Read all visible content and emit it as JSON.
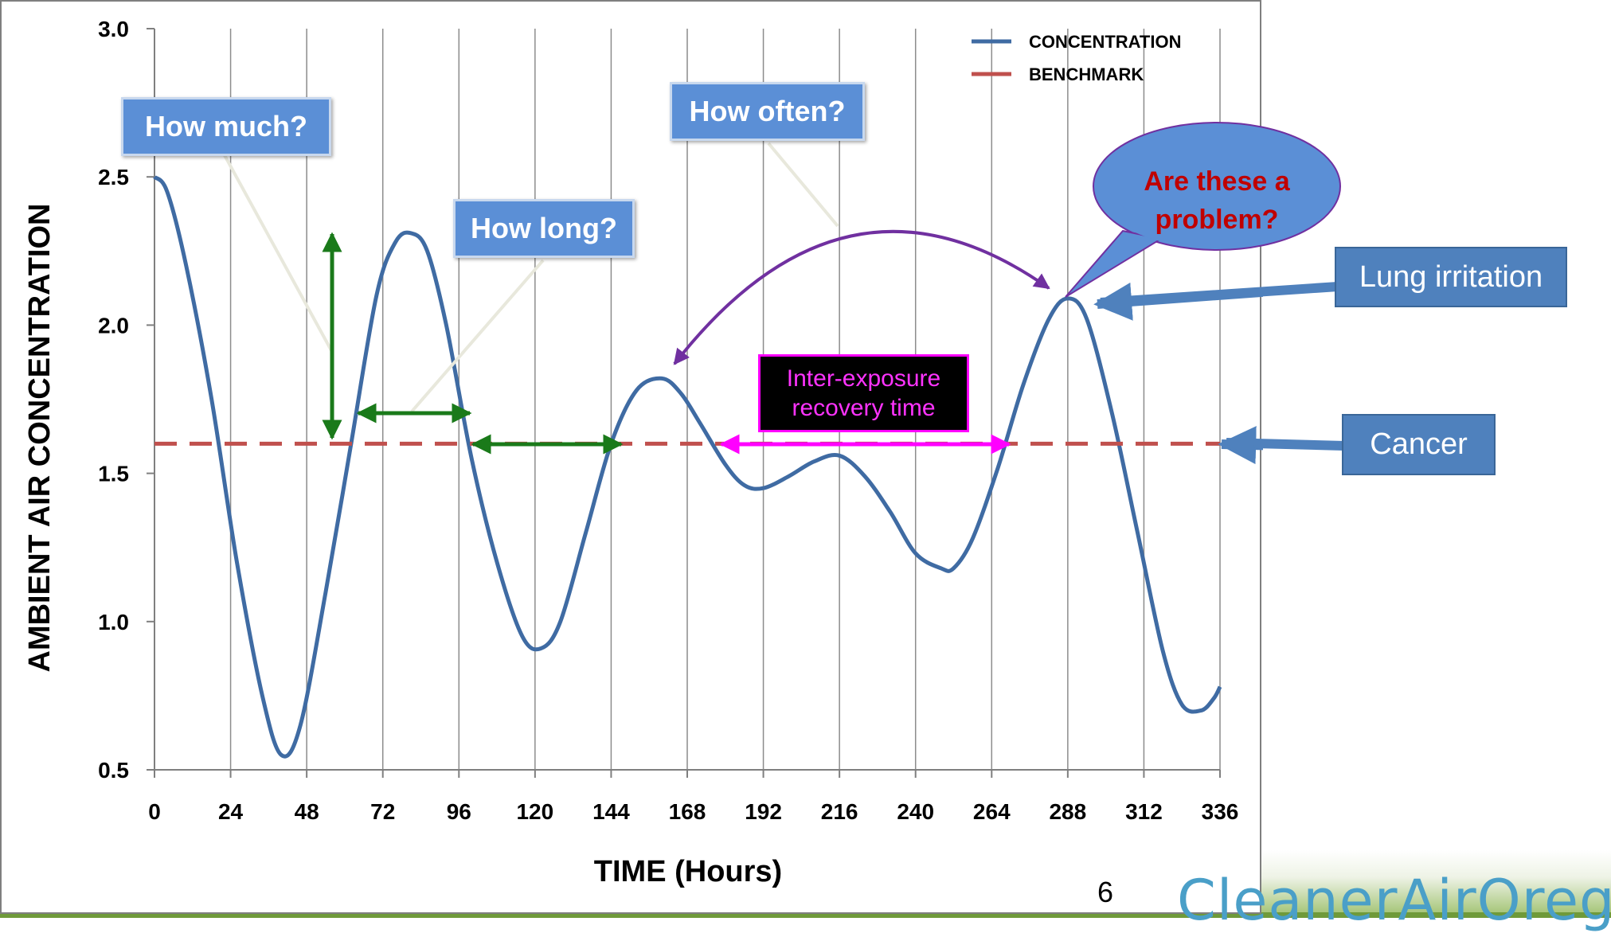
{
  "chart_data": {
    "type": "line",
    "title": "",
    "xlabel": "TIME (Hours)",
    "ylabel": "AMBIENT AIR CONCENTRATION",
    "xlim": [
      0,
      336
    ],
    "ylim": [
      0.5,
      3.0
    ],
    "x_ticks": [
      0,
      24,
      48,
      72,
      96,
      120,
      144,
      168,
      192,
      216,
      240,
      264,
      288,
      312,
      336
    ],
    "y_ticks": [
      "0.5",
      "1.0",
      "1.5",
      "2.0",
      "2.5",
      "3.0"
    ],
    "y_tick_values": [
      0.5,
      1.0,
      1.5,
      2.0,
      2.5,
      3.0
    ],
    "grid": "vertical",
    "legend": {
      "position": "top-right"
    },
    "series": [
      {
        "name": "CONCENTRATION",
        "color": "#3f6ba3",
        "style": "solid",
        "x": [
          0,
          4,
          10,
          18,
          26,
          34,
          40,
          46,
          54,
          62,
          70,
          76,
          81,
          86,
          92,
          100,
          108,
          116,
          122,
          128,
          136,
          144,
          152,
          160,
          166,
          172,
          180,
          186,
          192,
          200,
          208,
          216,
          224,
          232,
          240,
          248,
          252,
          258,
          266,
          274,
          282,
          288,
          294,
          302,
          310,
          318,
          324,
          330,
          334,
          336
        ],
        "y": [
          2.5,
          2.45,
          2.2,
          1.75,
          1.2,
          0.75,
          0.55,
          0.65,
          1.1,
          1.6,
          2.1,
          2.28,
          2.31,
          2.25,
          2.0,
          1.55,
          1.2,
          0.95,
          0.91,
          1.0,
          1.3,
          1.6,
          1.78,
          1.82,
          1.77,
          1.67,
          1.53,
          1.46,
          1.45,
          1.49,
          1.54,
          1.56,
          1.49,
          1.37,
          1.23,
          1.18,
          1.18,
          1.28,
          1.52,
          1.8,
          2.02,
          2.09,
          2.02,
          1.7,
          1.3,
          0.9,
          0.72,
          0.7,
          0.74,
          0.78
        ]
      },
      {
        "name": "BENCHMARK",
        "color": "#c0504d",
        "style": "dashed",
        "x": [
          0,
          336
        ],
        "y": [
          1.6,
          1.6
        ]
      }
    ],
    "annotations": {
      "how_much": "How much?",
      "how_long": "How long?",
      "how_often": "How often?",
      "problem_line1": "Are these a",
      "problem_line2": "problem?",
      "recovery_line1": "Inter-exposure",
      "recovery_line2": "recovery time",
      "lung": "Lung irritation",
      "cancer": "Cancer"
    }
  },
  "slide": {
    "page_number": "6",
    "logo_text": "CleanerAirOregon"
  }
}
